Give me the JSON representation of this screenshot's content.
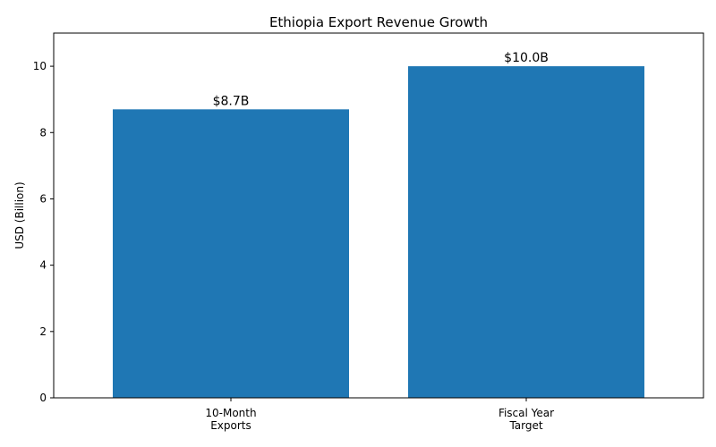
{
  "chart_data": {
    "type": "bar",
    "title": "Ethiopia Export Revenue Growth",
    "xlabel": "",
    "ylabel": "USD (Billion)",
    "categories": [
      [
        "10-Month",
        "Exports"
      ],
      [
        "Fiscal Year",
        "Target"
      ]
    ],
    "values": [
      8.7,
      10.0
    ],
    "data_labels": [
      "$8.7B",
      "$10.0B"
    ],
    "ylim": [
      0,
      11
    ],
    "yticks": [
      0,
      2,
      4,
      6,
      8,
      10
    ],
    "grid": false,
    "bar_color": "#1f77b4"
  }
}
